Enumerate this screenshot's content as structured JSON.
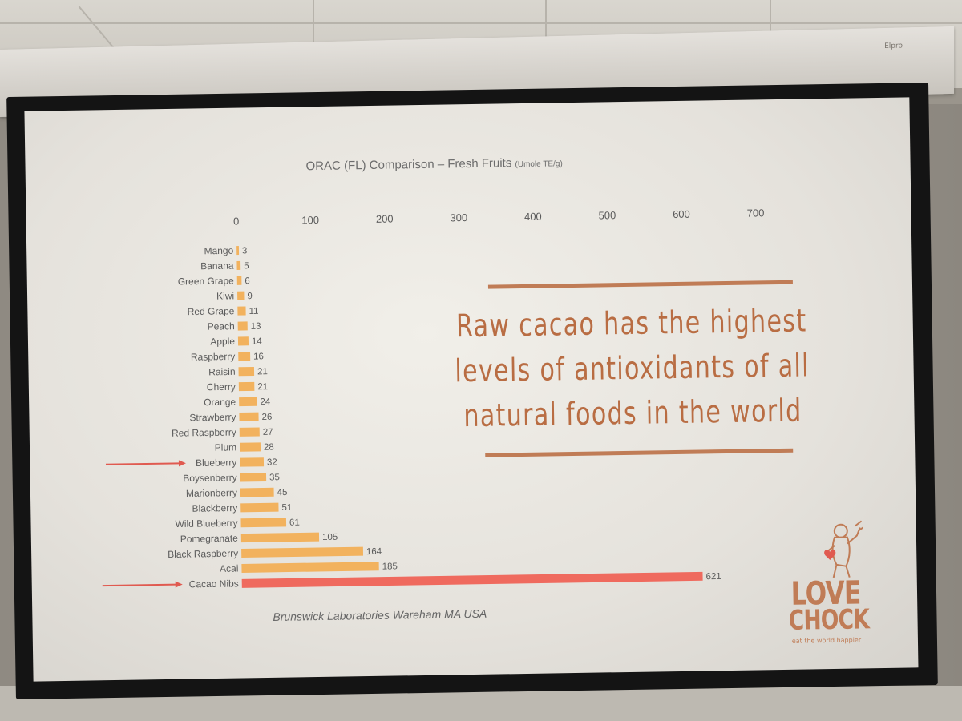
{
  "slide": {
    "headline_lines": [
      "Raw cacao has the highest",
      "levels of antioxidants of all",
      "natural foods in the world"
    ],
    "source": "Brunswick Laboratories Wareham MA USA",
    "logo": {
      "line1": "LOVE",
      "line2": "CHOCK",
      "tagline": "eat the world happier"
    },
    "housing_brand": "Elpro"
  },
  "colors": {
    "bar": "#f2b25e",
    "highlight_bar": "#ef6a5e",
    "arrow": "#e05a50",
    "accent": "#c07c56"
  },
  "chart_data": {
    "type": "bar",
    "orientation": "horizontal",
    "title": "ORAC (FL) Comparison – Fresh Fruits",
    "unit": "(Umole TE/g)",
    "xlim": [
      0,
      700
    ],
    "ticks": [
      0,
      100,
      200,
      300,
      400,
      500,
      600,
      700
    ],
    "axis_position": "top",
    "grid": false,
    "legend": "none",
    "categories": [
      "Mango",
      "Banana",
      "Green Grape",
      "Kiwi",
      "Red Grape",
      "Peach",
      "Apple",
      "Raspberry",
      "Raisin",
      "Cherry",
      "Orange",
      "Strawberry",
      "Red Raspberry",
      "Plum",
      "Blueberry",
      "Boysenberry",
      "Marionberry",
      "Blackberry",
      "Wild Blueberry",
      "Pomegranate",
      "Black Raspberry",
      "Acai",
      "Cacao Nibs"
    ],
    "values": [
      3,
      5,
      6,
      9,
      11,
      13,
      14,
      16,
      21,
      21,
      24,
      26,
      27,
      28,
      32,
      35,
      45,
      51,
      61,
      105,
      164,
      185,
      621
    ],
    "highlighted": [
      "Cacao Nibs"
    ],
    "arrows": [
      "Blueberry",
      "Cacao Nibs"
    ]
  }
}
